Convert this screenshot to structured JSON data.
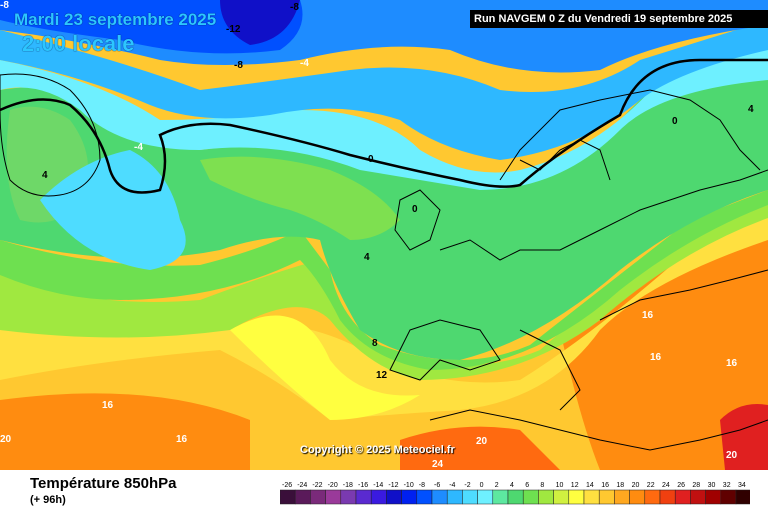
{
  "header": {
    "date_title": "Mardi 23 septembre 2025",
    "time_title": "2:00 locale",
    "run": "Run NAVGEM 0 Z du Vendredi 19 septembre 2025",
    "corner_value": "-8"
  },
  "footer": {
    "variable": "Température 850hPa",
    "lead_time": "(+ 96h)",
    "copyright": "Copyright © 2025 Meteociel.fr"
  },
  "legend": {
    "values": [
      "-26",
      "-24",
      "-22",
      "-20",
      "-18",
      "-16",
      "-14",
      "-12",
      "-10",
      "-8",
      "-6",
      "-4",
      "-2",
      "0",
      "2",
      "4",
      "6",
      "8",
      "10",
      "12",
      "14",
      "16",
      "18",
      "20",
      "22",
      "24",
      "26",
      "28",
      "30",
      "32",
      "34"
    ],
    "colors": [
      "#3a0f3a",
      "#5a1a5a",
      "#7a2a7a",
      "#9a3a9a",
      "#7a3ab0",
      "#5a2ad0",
      "#3a1ae0",
      "#1010c8",
      "#0020f0",
      "#0050ff",
      "#1e8cff",
      "#2eb8ff",
      "#4edcff",
      "#6ef0ff",
      "#5de8a0",
      "#4ed870",
      "#6ee050",
      "#a0e840",
      "#d0f040",
      "#ffff40",
      "#ffe040",
      "#ffc830",
      "#ffa820",
      "#ff8c10",
      "#ff6a10",
      "#f04010",
      "#e02020",
      "#c01010",
      "#a00000",
      "#600000",
      "#300000"
    ]
  },
  "map_labels": [
    {
      "text": "-12"
    },
    {
      "text": "-8"
    },
    {
      "text": "-8"
    },
    {
      "text": "-4"
    },
    {
      "text": "-4"
    },
    {
      "text": "4"
    },
    {
      "text": "0"
    },
    {
      "text": "0"
    },
    {
      "text": "4"
    },
    {
      "text": "0"
    },
    {
      "text": "4"
    },
    {
      "text": "8"
    },
    {
      "text": "12"
    },
    {
      "text": "16"
    },
    {
      "text": "16"
    },
    {
      "text": "16"
    },
    {
      "text": "16"
    },
    {
      "text": "16"
    },
    {
      "text": "20"
    },
    {
      "text": "20"
    },
    {
      "text": "20"
    },
    {
      "text": "24"
    }
  ]
}
